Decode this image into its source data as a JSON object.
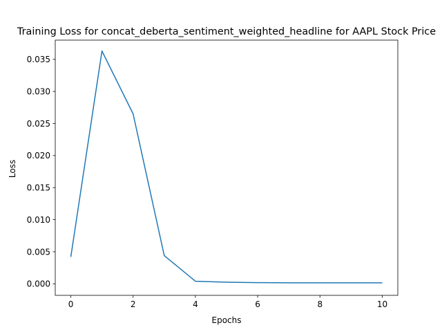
{
  "chart_data": {
    "type": "line",
    "title": "Training Loss for concat_deberta_sentiment_weighted_headline for AAPL Stock Price",
    "xlabel": "Epochs",
    "ylabel": "Loss",
    "xlim": [
      -0.5,
      10.5
    ],
    "ylim": [
      -0.0018,
      0.038
    ],
    "xticks": [
      0,
      2,
      4,
      6,
      8,
      10
    ],
    "xtick_labels": [
      "0",
      "2",
      "4",
      "6",
      "8",
      "10"
    ],
    "yticks": [
      0.0,
      0.005,
      0.01,
      0.015,
      0.02,
      0.025,
      0.03,
      0.035
    ],
    "ytick_labels": [
      "0.000",
      "0.005",
      "0.010",
      "0.015",
      "0.020",
      "0.025",
      "0.030",
      "0.035"
    ],
    "grid": false,
    "series": [
      {
        "color": "#1f77b4",
        "x": [
          0,
          1,
          2,
          3,
          4,
          5,
          6,
          7,
          8,
          9,
          10
        ],
        "y": [
          0.0042,
          0.0363,
          0.0265,
          0.0044,
          0.0004,
          0.00025,
          0.00018,
          0.00016,
          0.00015,
          0.00015,
          0.00015
        ]
      }
    ]
  }
}
